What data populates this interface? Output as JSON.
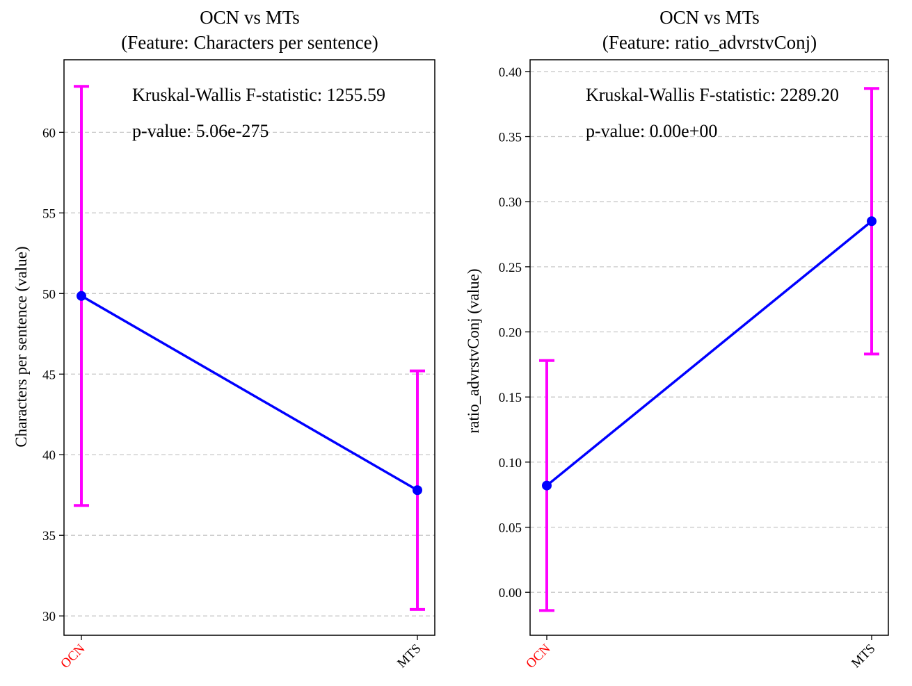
{
  "chart_data": [
    {
      "type": "line",
      "title": "OCN vs MTs\n(Feature: Characters per sentence)",
      "ylabel": "Characters per sentence (value)",
      "categories": [
        "OCN",
        "MTS"
      ],
      "category_colors": [
        "#ff0000",
        "#000000"
      ],
      "values": [
        49.85,
        37.8
      ],
      "error_low": [
        36.85,
        30.4
      ],
      "error_high": [
        62.85,
        45.2
      ],
      "yticks": [
        30,
        35,
        40,
        45,
        50,
        55,
        60
      ],
      "ytick_labels": [
        "30",
        "35",
        "40",
        "45",
        "50",
        "55",
        "60"
      ],
      "ylim": [
        28.8,
        64.5
      ],
      "grid": "y-dashed",
      "line_color": "#0000ff",
      "errorbar_color": "#ff00ff",
      "annotations": [
        "Kruskal-Wallis F-statistic: 1255.59",
        "p-value: 5.06e-275"
      ]
    },
    {
      "type": "line",
      "title": "OCN vs MTs\n(Feature: ratio_advrstvConj)",
      "ylabel": "ratio_advrstvConj (value)",
      "categories": [
        "OCN",
        "MTS"
      ],
      "category_colors": [
        "#ff0000",
        "#000000"
      ],
      "values": [
        0.082,
        0.285
      ],
      "error_low": [
        -0.014,
        0.183
      ],
      "error_high": [
        0.178,
        0.387
      ],
      "yticks": [
        0.0,
        0.05,
        0.1,
        0.15,
        0.2,
        0.25,
        0.3,
        0.35,
        0.4
      ],
      "ytick_labels": [
        "0.00",
        "0.05",
        "0.10",
        "0.15",
        "0.20",
        "0.25",
        "0.30",
        "0.35",
        "0.40"
      ],
      "ylim": [
        -0.033,
        0.409
      ],
      "grid": "y-dashed",
      "line_color": "#0000ff",
      "errorbar_color": "#ff00ff",
      "annotations": [
        "Kruskal-Wallis F-statistic: 2289.20",
        "p-value: 0.00e+00"
      ]
    }
  ]
}
